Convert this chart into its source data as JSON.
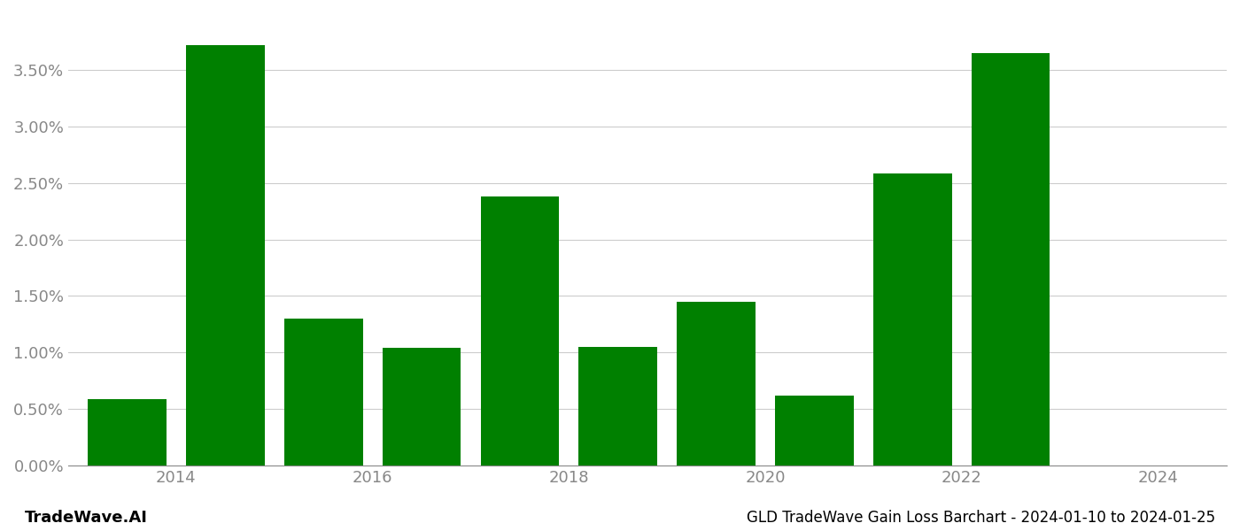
{
  "years": [
    2014,
    2015,
    2016,
    2017,
    2018,
    2019,
    2020,
    2021,
    2022,
    2023
  ],
  "values": [
    0.0059,
    0.0372,
    0.013,
    0.0104,
    0.0238,
    0.0105,
    0.0145,
    0.0062,
    0.0258,
    0.0365
  ],
  "bar_color": "#008000",
  "title": "GLD TradeWave Gain Loss Barchart - 2024-01-10 to 2024-01-25",
  "watermark": "TradeWave.AI",
  "ylim": [
    0,
    0.04
  ],
  "ytick_values": [
    0.0,
    0.005,
    0.01,
    0.015,
    0.02,
    0.025,
    0.03,
    0.035
  ],
  "background_color": "#ffffff",
  "grid_color": "#cccccc",
  "axis_color": "#888888",
  "title_fontsize": 12,
  "watermark_fontsize": 13,
  "tick_fontsize": 13,
  "bar_width": 0.8
}
